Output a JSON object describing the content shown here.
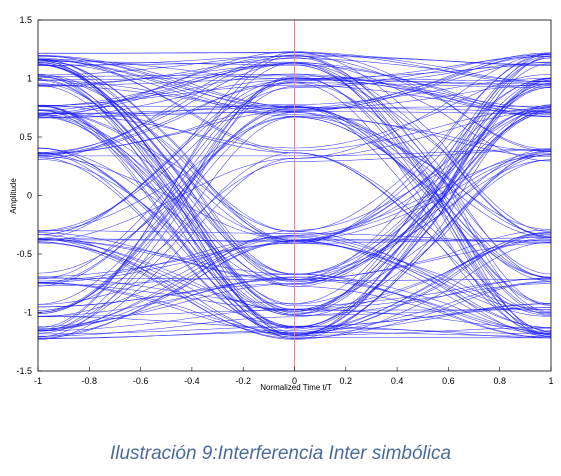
{
  "chart_data": {
    "type": "line",
    "title": "",
    "xlabel": "Normalized Time t/T",
    "ylabel": "Amplitude",
    "xlim": [
      -1,
      1
    ],
    "ylim": [
      -1.5,
      1.5
    ],
    "xticks": [
      "-1",
      "-0.8",
      "-0.6",
      "-0.4",
      "-0.2",
      "0",
      "0.2",
      "0.4",
      "0.6",
      "0.8",
      "1"
    ],
    "yticks": [
      "1.5",
      "1",
      "0.5",
      "0",
      "-0.5",
      "-1",
      "-1.5"
    ],
    "grid": false,
    "series_color": "#1f1fff",
    "marker_line": {
      "x": 0,
      "color": "#ff8080"
    },
    "eye_crossings_x": [
      -0.46,
      0.56
    ],
    "eye_levels_at_center": [
      -1.17,
      -0.98,
      -0.72,
      -0.35,
      0.35,
      0.72,
      0.98,
      1.17
    ]
  },
  "caption": "Ilustración 9:Interferencia Inter simbólica"
}
